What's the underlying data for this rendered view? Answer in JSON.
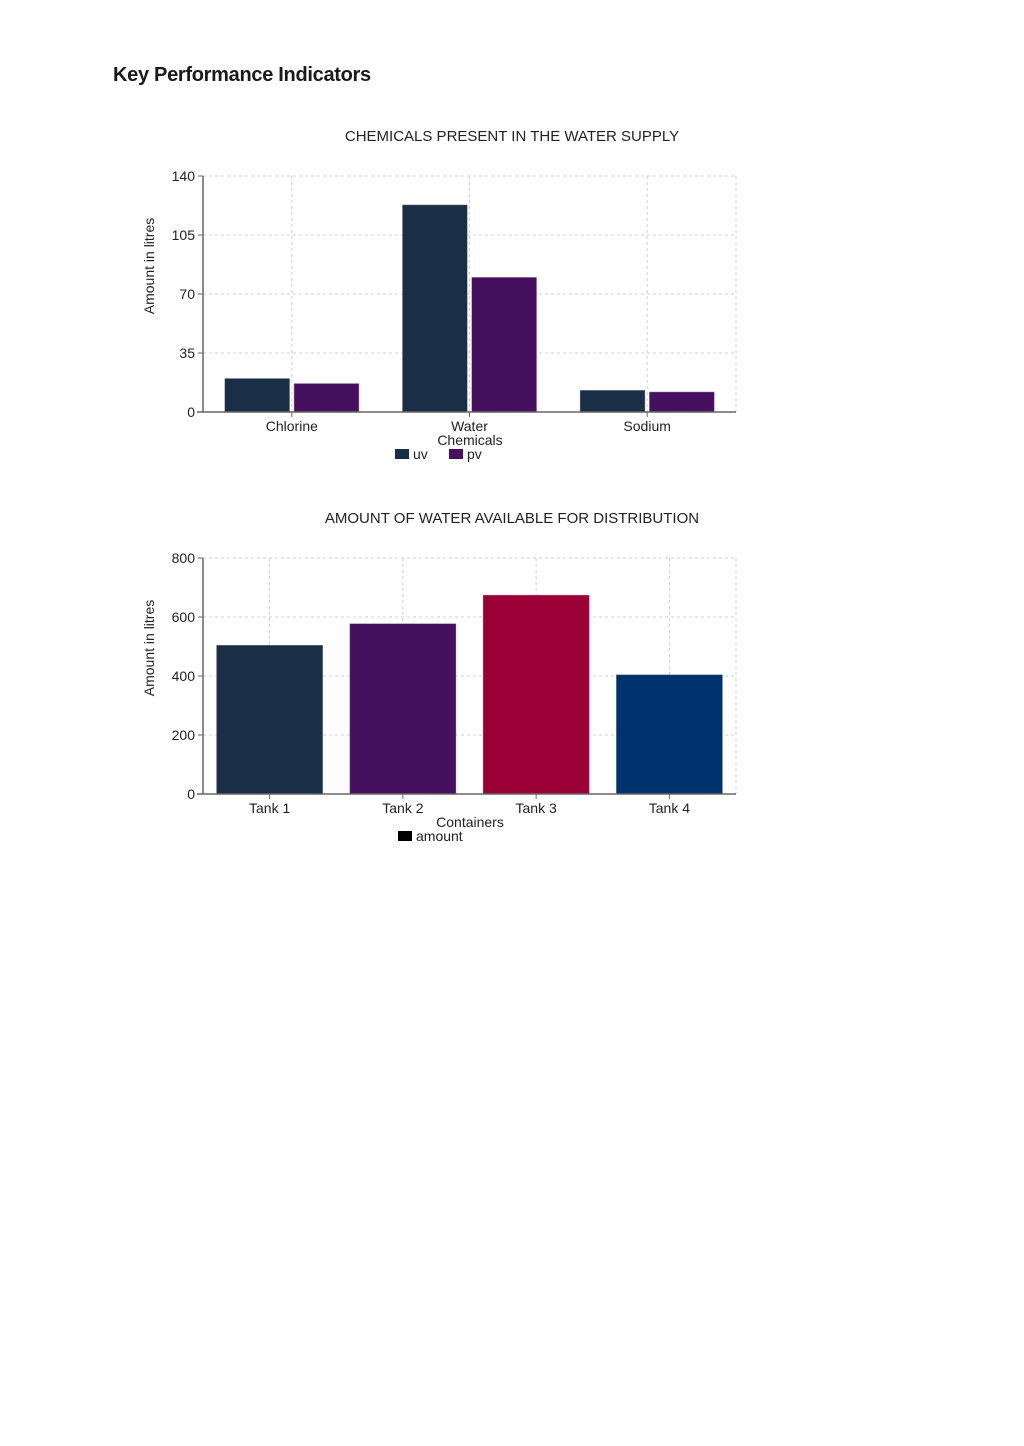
{
  "page": {
    "title": "Key Performance Indicators"
  },
  "chart_data": [
    {
      "type": "bar",
      "title": "CHEMICALS PRESENT IN THE WATER SUPPLY",
      "xlabel": "Chemicals",
      "ylabel": "Amount in litres",
      "categories": [
        "Chlorine",
        "Water",
        "Sodium"
      ],
      "series": [
        {
          "name": "uv",
          "color": "#1b2e48",
          "values": [
            20,
            123,
            13
          ]
        },
        {
          "name": "pv",
          "color": "#45105e",
          "values": [
            17,
            80,
            12
          ]
        }
      ],
      "ylim": [
        0,
        140
      ],
      "yticks": [
        0,
        35,
        70,
        105,
        140
      ],
      "grid": true,
      "legend_position": "bottom"
    },
    {
      "type": "bar",
      "title": "AMOUNT OF WATER AVAILABLE FOR DISTRIBUTION",
      "xlabel": "Containers",
      "ylabel": "Amount in litres",
      "categories": [
        "Tank 1",
        "Tank 2",
        "Tank 3",
        "Tank 4"
      ],
      "series": [
        {
          "name": "amount",
          "legend_color": "#000000",
          "values": [
            505,
            578,
            675,
            405
          ],
          "colors": [
            "#1b2e48",
            "#45105e",
            "#9b0036",
            "#00336e"
          ]
        }
      ],
      "ylim": [
        0,
        800
      ],
      "yticks": [
        0,
        200,
        400,
        600,
        800
      ],
      "grid": true,
      "legend_position": "bottom"
    }
  ]
}
